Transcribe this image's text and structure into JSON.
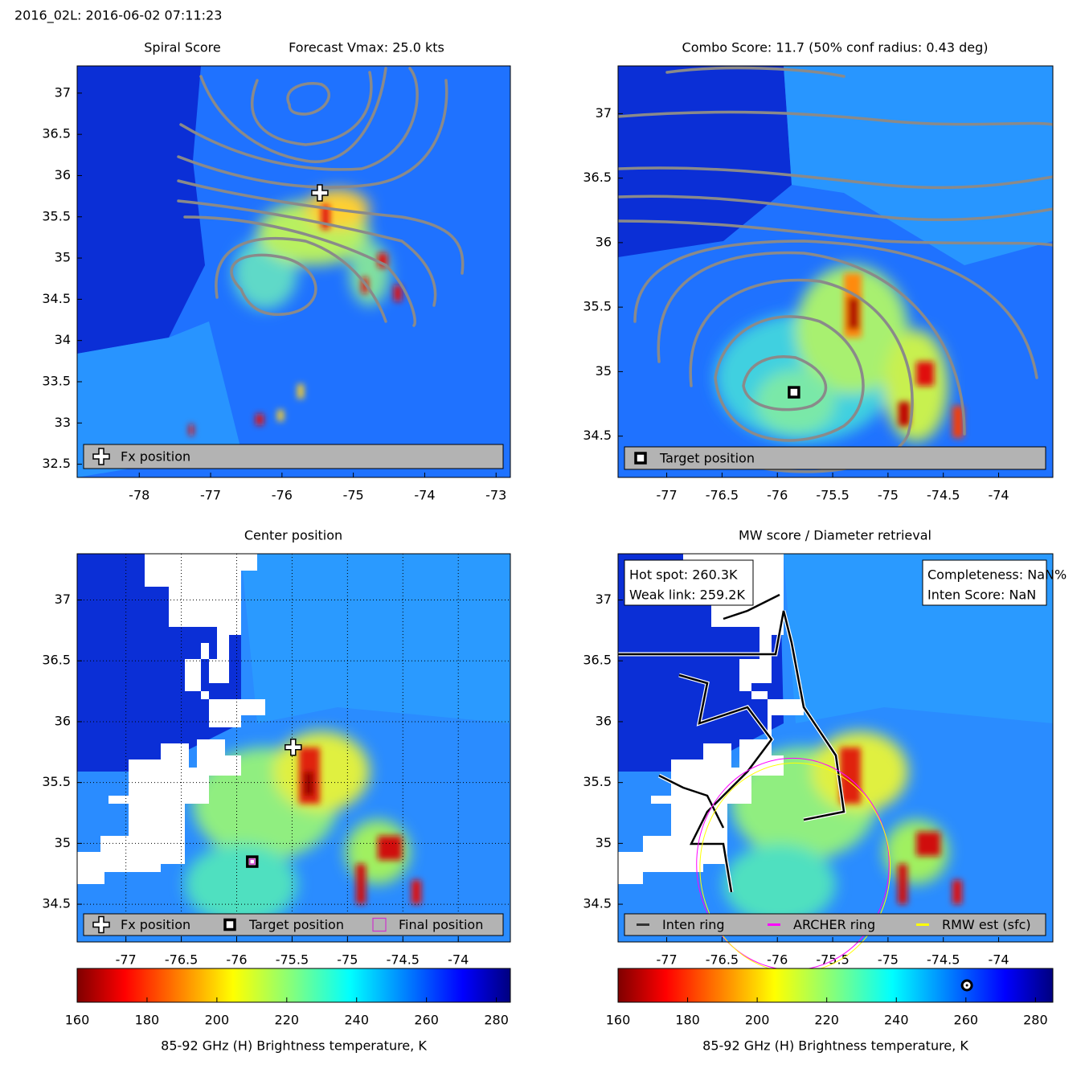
{
  "header": "2016_02L: 2016-06-02 07:11:23",
  "chart_data": [
    {
      "type": "map",
      "title": "Spiral Score",
      "subtitle": "Forecast Vmax: 25.0 kts",
      "xlim": [
        -78.87,
        -72.8
      ],
      "ylim": [
        32.34,
        37.33
      ],
      "xticks": [
        -78,
        -77,
        -76,
        -75,
        -74,
        -73
      ],
      "yticks": [
        32.5,
        33,
        33.5,
        34,
        34.5,
        35,
        35.5,
        36,
        36.5,
        37
      ],
      "grid": false,
      "legend": "bottom",
      "series": [
        {
          "name": "Fx position",
          "marker": "cross",
          "color": "#ffffff",
          "x": [
            -75.47
          ],
          "values": [
            35.79
          ]
        }
      ]
    },
    {
      "type": "map",
      "title": "Combo Score: 11.7  (50% conf radius: 0.43 deg)",
      "xlim": [
        -77.44,
        -73.51
      ],
      "ylim": [
        34.18,
        37.37
      ],
      "xticks": [
        -77,
        -76.5,
        -76,
        -75.5,
        -75,
        -74.5,
        -74
      ],
      "yticks": [
        34.5,
        35,
        35.5,
        36,
        36.5,
        37
      ],
      "grid": false,
      "legend": "bottom",
      "series": [
        {
          "name": "Target position",
          "marker": "square",
          "color": "#000000",
          "x": [
            -75.85
          ],
          "values": [
            34.84
          ]
        }
      ]
    },
    {
      "type": "map",
      "title": "Center position",
      "xlim": [
        -77.44,
        -73.53
      ],
      "ylim": [
        34.19,
        37.38
      ],
      "xticks": [
        -77,
        -76.5,
        -76,
        -75.5,
        -75,
        -74.5,
        -74
      ],
      "yticks": [
        34.5,
        35,
        35.5,
        36,
        36.5,
        37
      ],
      "grid": true,
      "legend": "bottom",
      "series": [
        {
          "name": "Fx position",
          "marker": "cross",
          "color": "#ffffff",
          "x": [
            -75.49
          ],
          "values": [
            35.79
          ]
        },
        {
          "name": "Target position",
          "marker": "square",
          "color": "#000000",
          "x": [
            -75.86
          ],
          "values": [
            34.85
          ]
        },
        {
          "name": "Final position",
          "marker": "hollow-square",
          "color": "#cc33cc",
          "x": [
            -75.86
          ],
          "values": [
            34.85
          ]
        }
      ]
    },
    {
      "type": "map",
      "title": "MW score / Diameter retrieval",
      "xlim": [
        -77.44,
        -73.51
      ],
      "ylim": [
        34.19,
        37.38
      ],
      "xticks": [
        -77,
        -76.5,
        -76,
        -75.5,
        -75,
        -74.5,
        -74
      ],
      "yticks": [
        34.5,
        35,
        35.5,
        36,
        36.5,
        37
      ],
      "grid": false,
      "legend": "bottom",
      "annotations_left": [
        "Hot spot: 260.3K",
        "Weak link: 259.2K"
      ],
      "annotations_right": [
        "Completeness: NaN%",
        "Inten Score: NaN"
      ],
      "series": [
        {
          "name": "Inten ring",
          "marker": "ring",
          "color": "#333333"
        },
        {
          "name": "ARCHER ring",
          "marker": "ring",
          "color": "#ff00ff",
          "center_x": -75.86,
          "center_y": 34.83,
          "radius": 0.87
        },
        {
          "name": "RMW est (sfc)",
          "marker": "ring",
          "color": "#ffff00",
          "center_x": -75.84,
          "center_y": 34.8,
          "radius": 0.86
        }
      ]
    },
    {
      "type": "colorbar",
      "xlabel": "85-92 GHz (H) Brightness temperature, K",
      "xlim": [
        160,
        284
      ],
      "xticks": [
        160,
        180,
        200,
        220,
        240,
        260,
        280
      ]
    },
    {
      "type": "colorbar",
      "xlabel": "85-92 GHz (H) Brightness temperature, K",
      "xlim": [
        160,
        285
      ],
      "xticks": [
        160,
        180,
        200,
        220,
        240,
        260,
        280
      ],
      "marker": 260.3
    }
  ]
}
